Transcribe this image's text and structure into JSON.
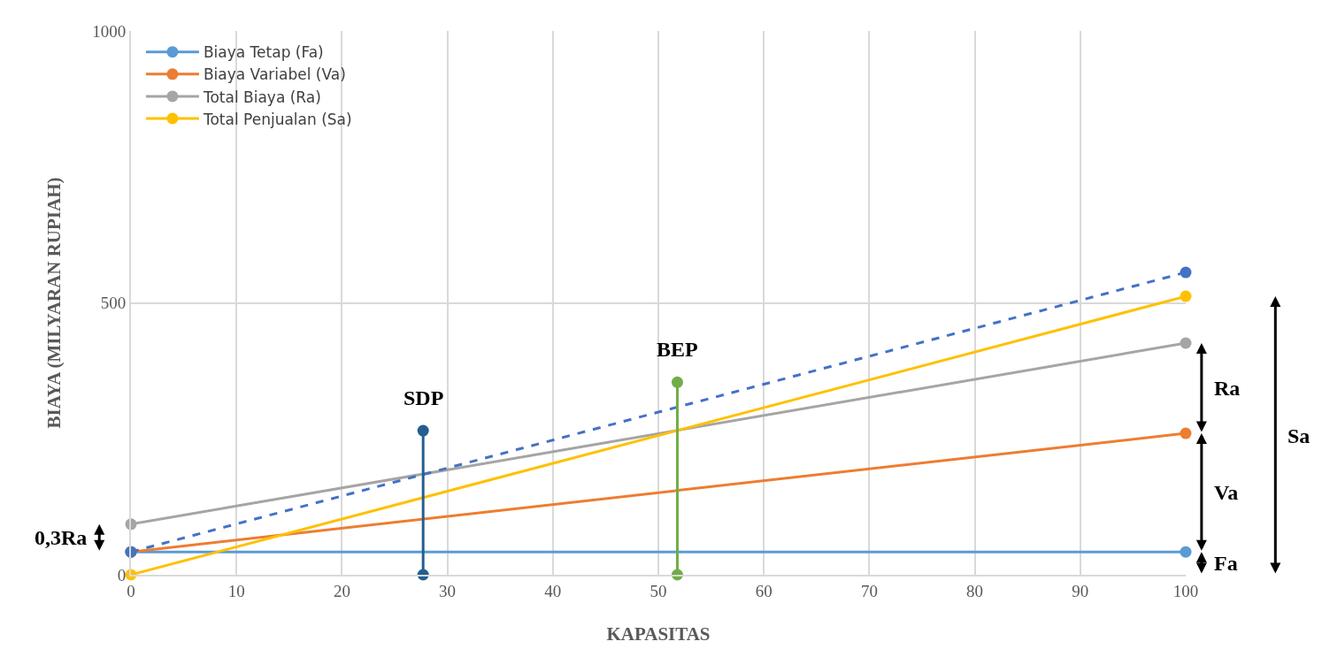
{
  "chart_data": {
    "type": "line",
    "xlabel": "KAPASITAS",
    "ylabel": "BIAYA (MILYARAN RUPIAH)",
    "xlim": [
      0,
      100
    ],
    "xticks": [
      0,
      10,
      20,
      30,
      40,
      50,
      60,
      70,
      80,
      90,
      100
    ],
    "ylim": [
      0,
      1000
    ],
    "yticks": [
      0,
      500,
      1000
    ],
    "grid": true,
    "legend": "top left",
    "marker": "circle",
    "line_style": "solid",
    "series": [
      {
        "name": "Biaya Tetap (Fa)",
        "color": "#5b9bd5",
        "x": [
          0,
          100
        ],
        "values": [
          42,
          42
        ]
      },
      {
        "name": "Biaya Variabel (Va)",
        "color": "#ed7d31",
        "x": [
          0,
          100
        ],
        "values": [
          42,
          260
        ]
      },
      {
        "name": "Total Biaya (Ra)",
        "color": "#a5a5a5",
        "x": [
          0,
          100
        ],
        "values": [
          93,
          426
        ]
      },
      {
        "name": "Total Penjualan (Sa)",
        "color": "#ffc000",
        "x": [
          0,
          100
        ],
        "values": [
          0,
          512
        ]
      },
      {
        "color": "#4472c4",
        "x": [
          0,
          100
        ],
        "values": [
          42,
          556
        ],
        "line_style": "dashed"
      },
      {
        "color": "#255e91",
        "x": [
          27.7,
          27.7
        ],
        "values": [
          0,
          265
        ]
      },
      {
        "color": "#70ad47",
        "x": [
          51.8,
          51.8
        ],
        "values": [
          0,
          354
        ]
      }
    ],
    "annotations": [
      "0,3Ra",
      {
        "text": "SDP",
        "x": 27.7,
        "y": 265
      },
      {
        "text": "BEP",
        "x": 51.8,
        "y": 354
      },
      "Ra",
      "Va",
      "Fa",
      "Sa"
    ]
  }
}
